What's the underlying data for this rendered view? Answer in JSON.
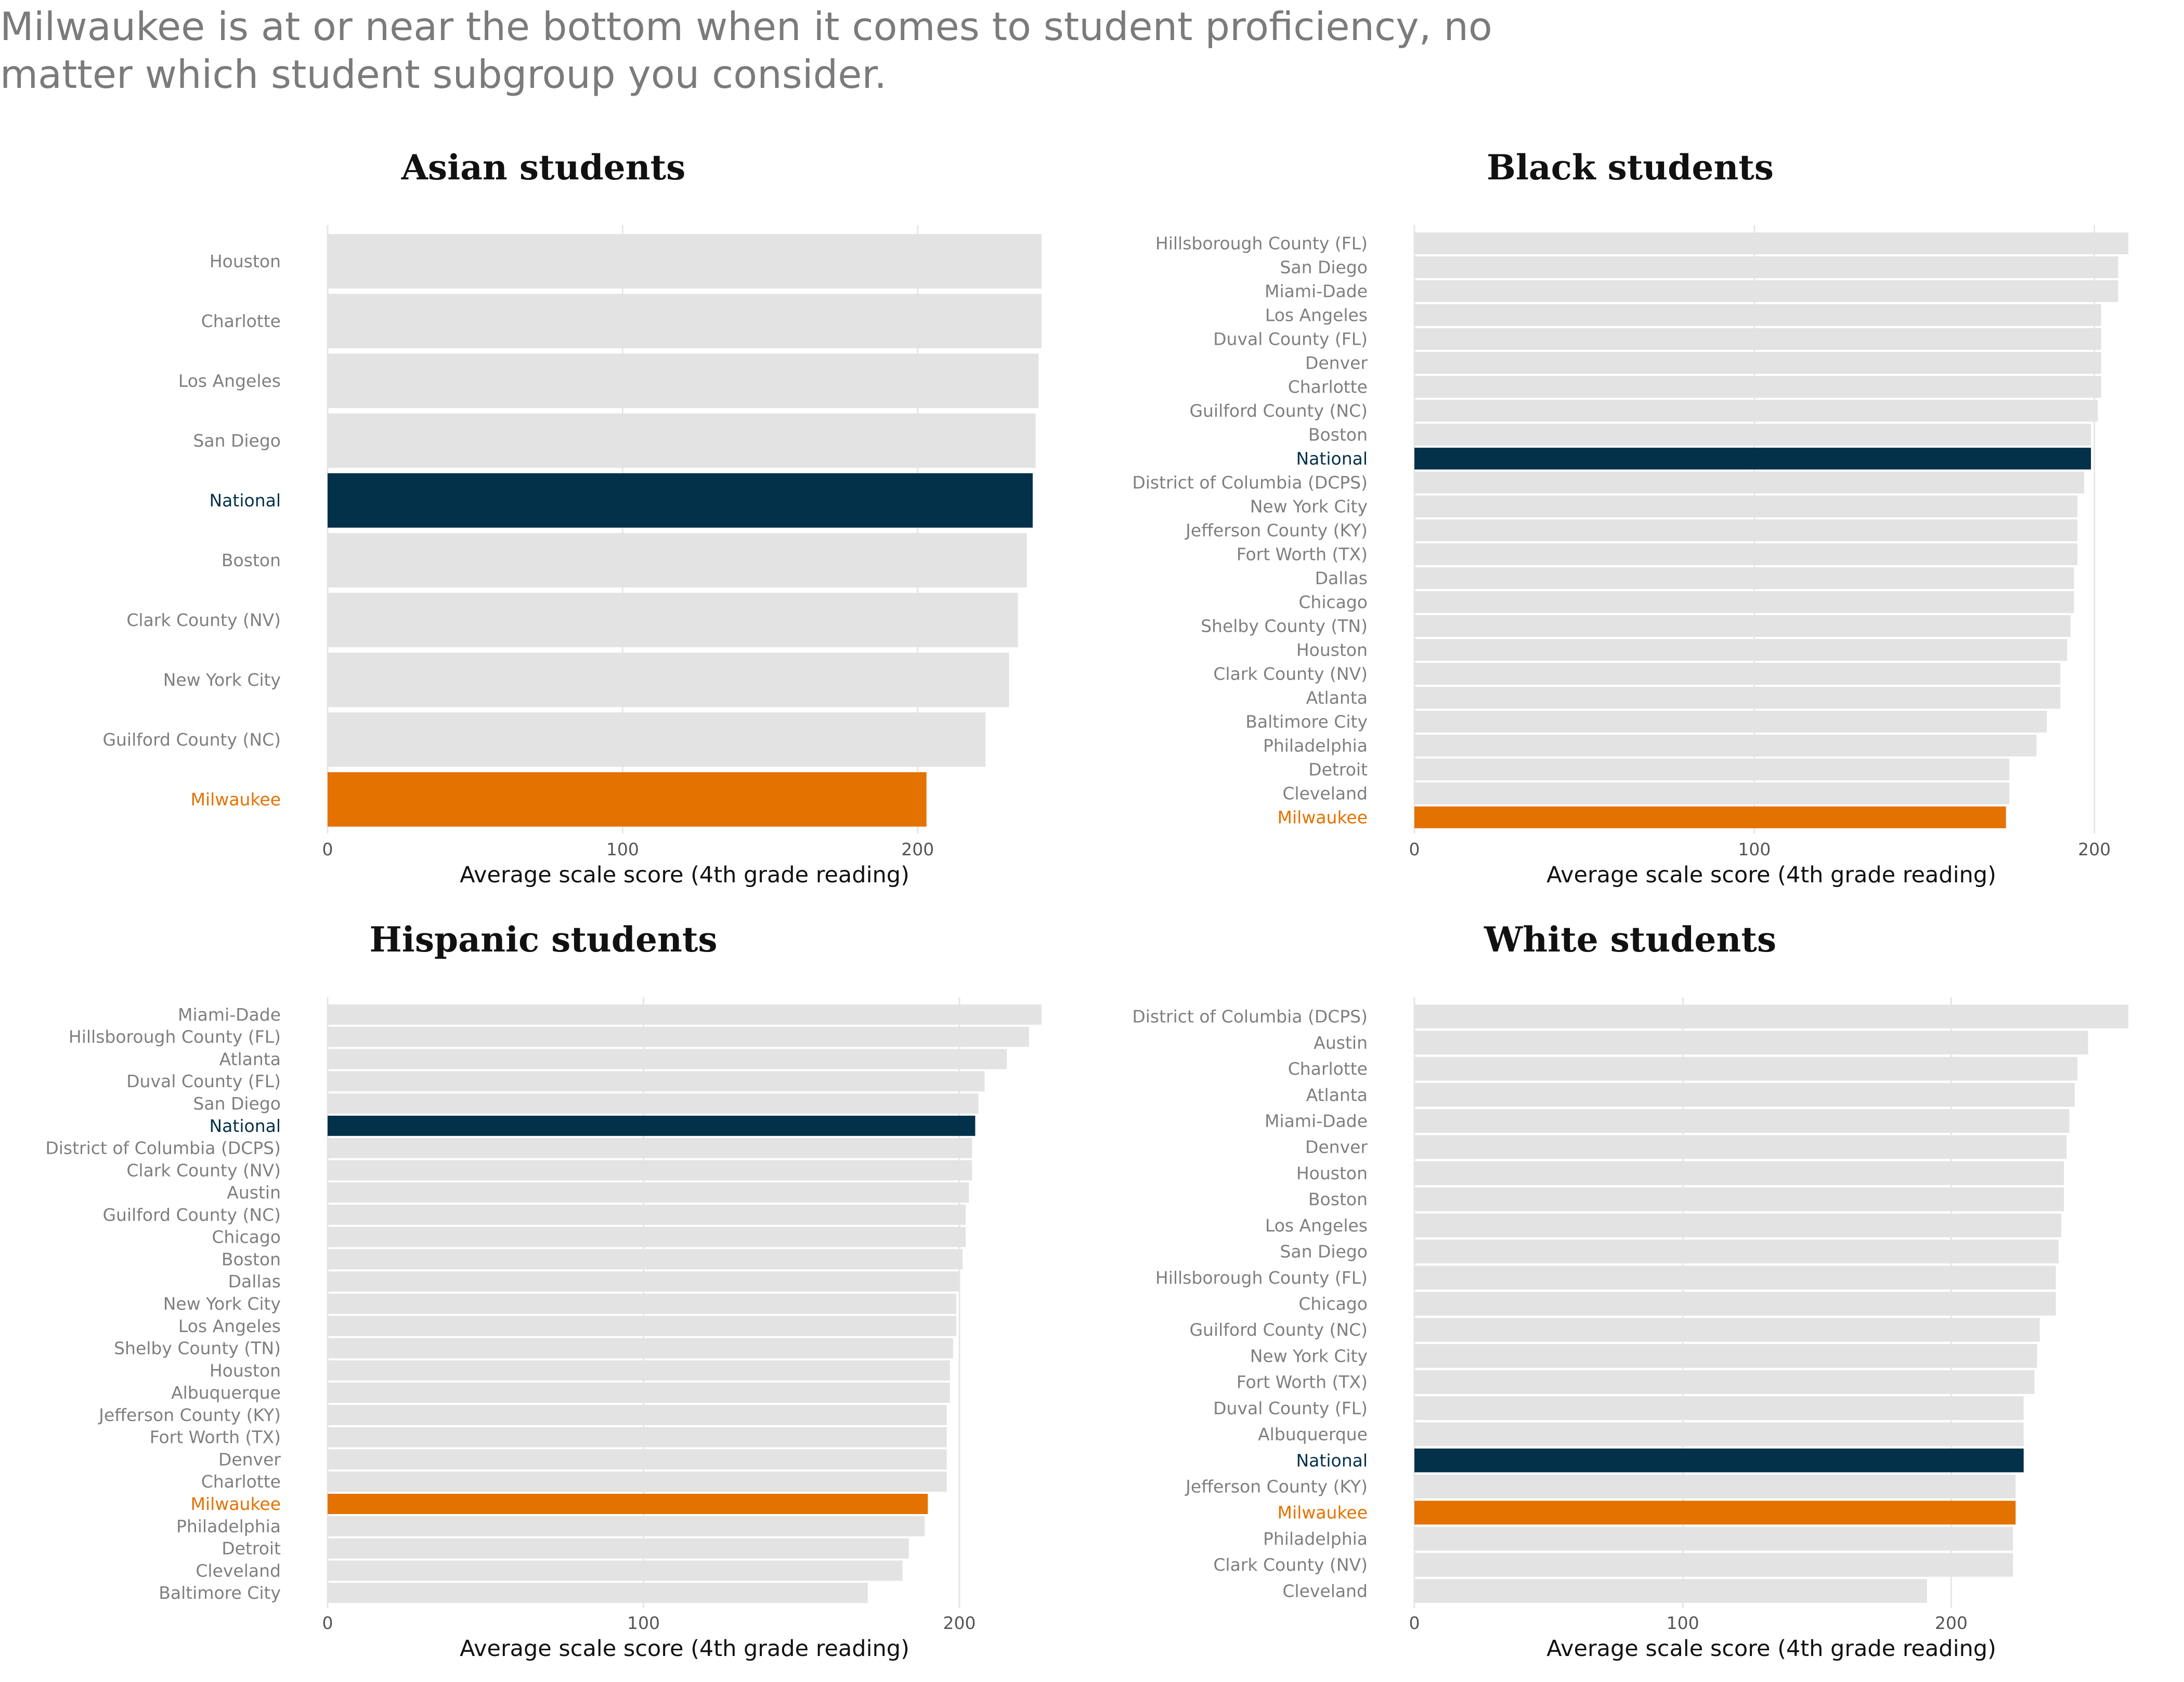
{
  "headline": "Milwaukee is at or near the bottom when it comes to student proficiency, no matter which student subgroup you consider.",
  "colors": {
    "default": "#e3e3e3",
    "National": "#03314a",
    "Milwaukee": "#e37200",
    "default_label": "#7f7f7f",
    "grid": "#e6e6e6"
  },
  "chart_data": [
    {
      "type": "bar",
      "orientation": "horizontal",
      "title": "Asian students",
      "xlabel": "Average scale score (4th grade reading)",
      "ticks": [
        0,
        100,
        200
      ],
      "xlim": [
        0,
        242
      ],
      "categories": [
        "Houston",
        "Charlotte",
        "Los Angeles",
        "San Diego",
        "National",
        "Boston",
        "Clark County (NV)",
        "New York City",
        "Guilford County (NC)",
        "Milwaukee"
      ],
      "values": [
        242,
        242,
        241,
        240,
        239,
        237,
        234,
        231,
        223,
        203
      ]
    },
    {
      "type": "bar",
      "orientation": "horizontal",
      "title": "Black students",
      "xlabel": "Average scale score (4th grade reading)",
      "ticks": [
        0,
        100,
        200
      ],
      "xlim": [
        0,
        210
      ],
      "categories": [
        "Hillsborough County (FL)",
        "San Diego",
        "Miami-Dade",
        "Los Angeles",
        "Duval County (FL)",
        "Denver",
        "Charlotte",
        "Guilford County (NC)",
        "Boston",
        "National",
        "District of Columbia (DCPS)",
        "New York City",
        "Jefferson County (KY)",
        "Fort Worth (TX)",
        "Dallas",
        "Chicago",
        "Shelby County (TN)",
        "Houston",
        "Clark County (NV)",
        "Atlanta",
        "Baltimore City",
        "Philadelphia",
        "Detroit",
        "Cleveland",
        "Milwaukee"
      ],
      "values": [
        210,
        207,
        207,
        202,
        202,
        202,
        202,
        201,
        199,
        199,
        197,
        195,
        195,
        195,
        194,
        194,
        193,
        192,
        190,
        190,
        186,
        183,
        175,
        175,
        174
      ]
    },
    {
      "type": "bar",
      "orientation": "horizontal",
      "title": "Hispanic students",
      "xlabel": "Average scale score (4th grade reading)",
      "ticks": [
        0,
        100,
        200
      ],
      "xlim": [
        0,
        226
      ],
      "categories": [
        "Miami-Dade",
        "Hillsborough County (FL)",
        "Atlanta",
        "Duval County (FL)",
        "San Diego",
        "National",
        "District of Columbia (DCPS)",
        "Clark County (NV)",
        "Austin",
        "Guilford County (NC)",
        "Chicago",
        "Boston",
        "Dallas",
        "New York City",
        "Los Angeles",
        "Shelby County (TN)",
        "Houston",
        "Albuquerque",
        "Jefferson County (KY)",
        "Fort Worth (TX)",
        "Denver",
        "Charlotte",
        "Milwaukee",
        "Philadelphia",
        "Detroit",
        "Cleveland",
        "Baltimore City"
      ],
      "values": [
        226,
        222,
        215,
        208,
        206,
        205,
        204,
        204,
        203,
        202,
        202,
        201,
        200,
        199,
        199,
        198,
        197,
        197,
        196,
        196,
        196,
        196,
        190,
        189,
        184,
        182,
        171
      ]
    },
    {
      "type": "bar",
      "orientation": "horizontal",
      "title": "White students",
      "xlabel": "Average scale score (4th grade reading)",
      "ticks": [
        0,
        100,
        200
      ],
      "xlim": [
        0,
        266
      ],
      "categories": [
        "District of Columbia (DCPS)",
        "Austin",
        "Charlotte",
        "Atlanta",
        "Miami-Dade",
        "Denver",
        "Houston",
        "Boston",
        "Los Angeles",
        "San Diego",
        "Hillsborough County (FL)",
        "Chicago",
        "Guilford County (NC)",
        "New York City",
        "Fort Worth (TX)",
        "Duval County (FL)",
        "Albuquerque",
        "National",
        "Jefferson County (KY)",
        "Milwaukee",
        "Philadelphia",
        "Clark County (NV)",
        "Cleveland"
      ],
      "values": [
        266,
        251,
        247,
        246,
        244,
        243,
        242,
        242,
        241,
        240,
        239,
        239,
        233,
        232,
        231,
        227,
        227,
        227,
        224,
        224,
        223,
        223,
        191
      ]
    }
  ]
}
